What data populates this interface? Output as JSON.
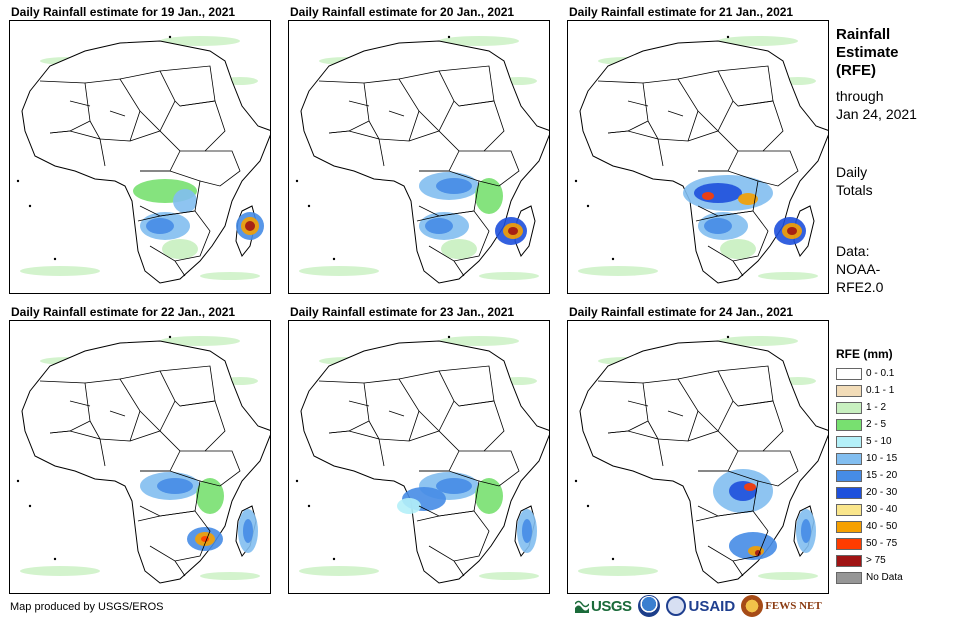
{
  "panels": [
    {
      "title": "Daily Rainfall estimate for 19 Jan., 2021",
      "rain": [
        "south",
        "madagascar-heavy",
        "central-light"
      ]
    },
    {
      "title": "Daily Rainfall estimate for 20 Jan., 2021",
      "rain": [
        "south",
        "mozambique-heavy",
        "central"
      ]
    },
    {
      "title": "Daily Rainfall estimate for 21 Jan., 2021",
      "rain": [
        "central-heavy",
        "south",
        "mozambique-heavy"
      ]
    },
    {
      "title": "Daily Rainfall estimate for 22 Jan., 2021",
      "rain": [
        "central",
        "zambezi-heavy",
        "madagascar"
      ]
    },
    {
      "title": "Daily Rainfall estimate for 23 Jan., 2021",
      "rain": [
        "central",
        "congo",
        "madagascar"
      ]
    },
    {
      "title": "Daily Rainfall estimate for 24 Jan., 2021",
      "rain": [
        "east-heavy",
        "south-heavy",
        "madagascar"
      ]
    }
  ],
  "side": {
    "title_line1": "Rainfall",
    "title_line2": "Estimate",
    "title_line3": "(RFE)",
    "through_line1": "through",
    "through_line2": "Jan 24, 2021",
    "totals_line1": "Daily",
    "totals_line2": "Totals",
    "data_line1": "Data:",
    "data_line2": "NOAA-",
    "data_line3": "RFE2.0"
  },
  "legend": {
    "title": "RFE (mm)",
    "items": [
      {
        "label": "0 - 0.1",
        "color": "#ffffff"
      },
      {
        "label": "0.1 - 1",
        "color": "#f2dcb8"
      },
      {
        "label": "1 - 2",
        "color": "#c8f0c0"
      },
      {
        "label": "2 - 5",
        "color": "#78e070"
      },
      {
        "label": "5 - 10",
        "color": "#b4f0f8"
      },
      {
        "label": "10 - 15",
        "color": "#82bef0"
      },
      {
        "label": "15 - 20",
        "color": "#468ce6"
      },
      {
        "label": "20 - 30",
        "color": "#1e50dc"
      },
      {
        "label": "30 - 40",
        "color": "#fae68c"
      },
      {
        "label": "40 - 50",
        "color": "#f5a000"
      },
      {
        "label": "50 - 75",
        "color": "#ff3c00"
      },
      {
        "label": "> 75",
        "color": "#a01414"
      },
      {
        "label": "No Data",
        "color": "#969696"
      }
    ]
  },
  "credit": "Map produced by USGS/EROS",
  "logos": {
    "usgs": "USGS",
    "usaid": "USAID",
    "fews": "FEWS NET"
  },
  "colors": {
    "light_green": "#c8f0c0",
    "green": "#78e070",
    "light_blue": "#b4f0f8",
    "blue1": "#82bef0",
    "blue2": "#468ce6",
    "blue3": "#1e50dc",
    "yellow": "#fae68c",
    "orange": "#f5a000",
    "red": "#ff3c00",
    "dark_red": "#a01414"
  }
}
